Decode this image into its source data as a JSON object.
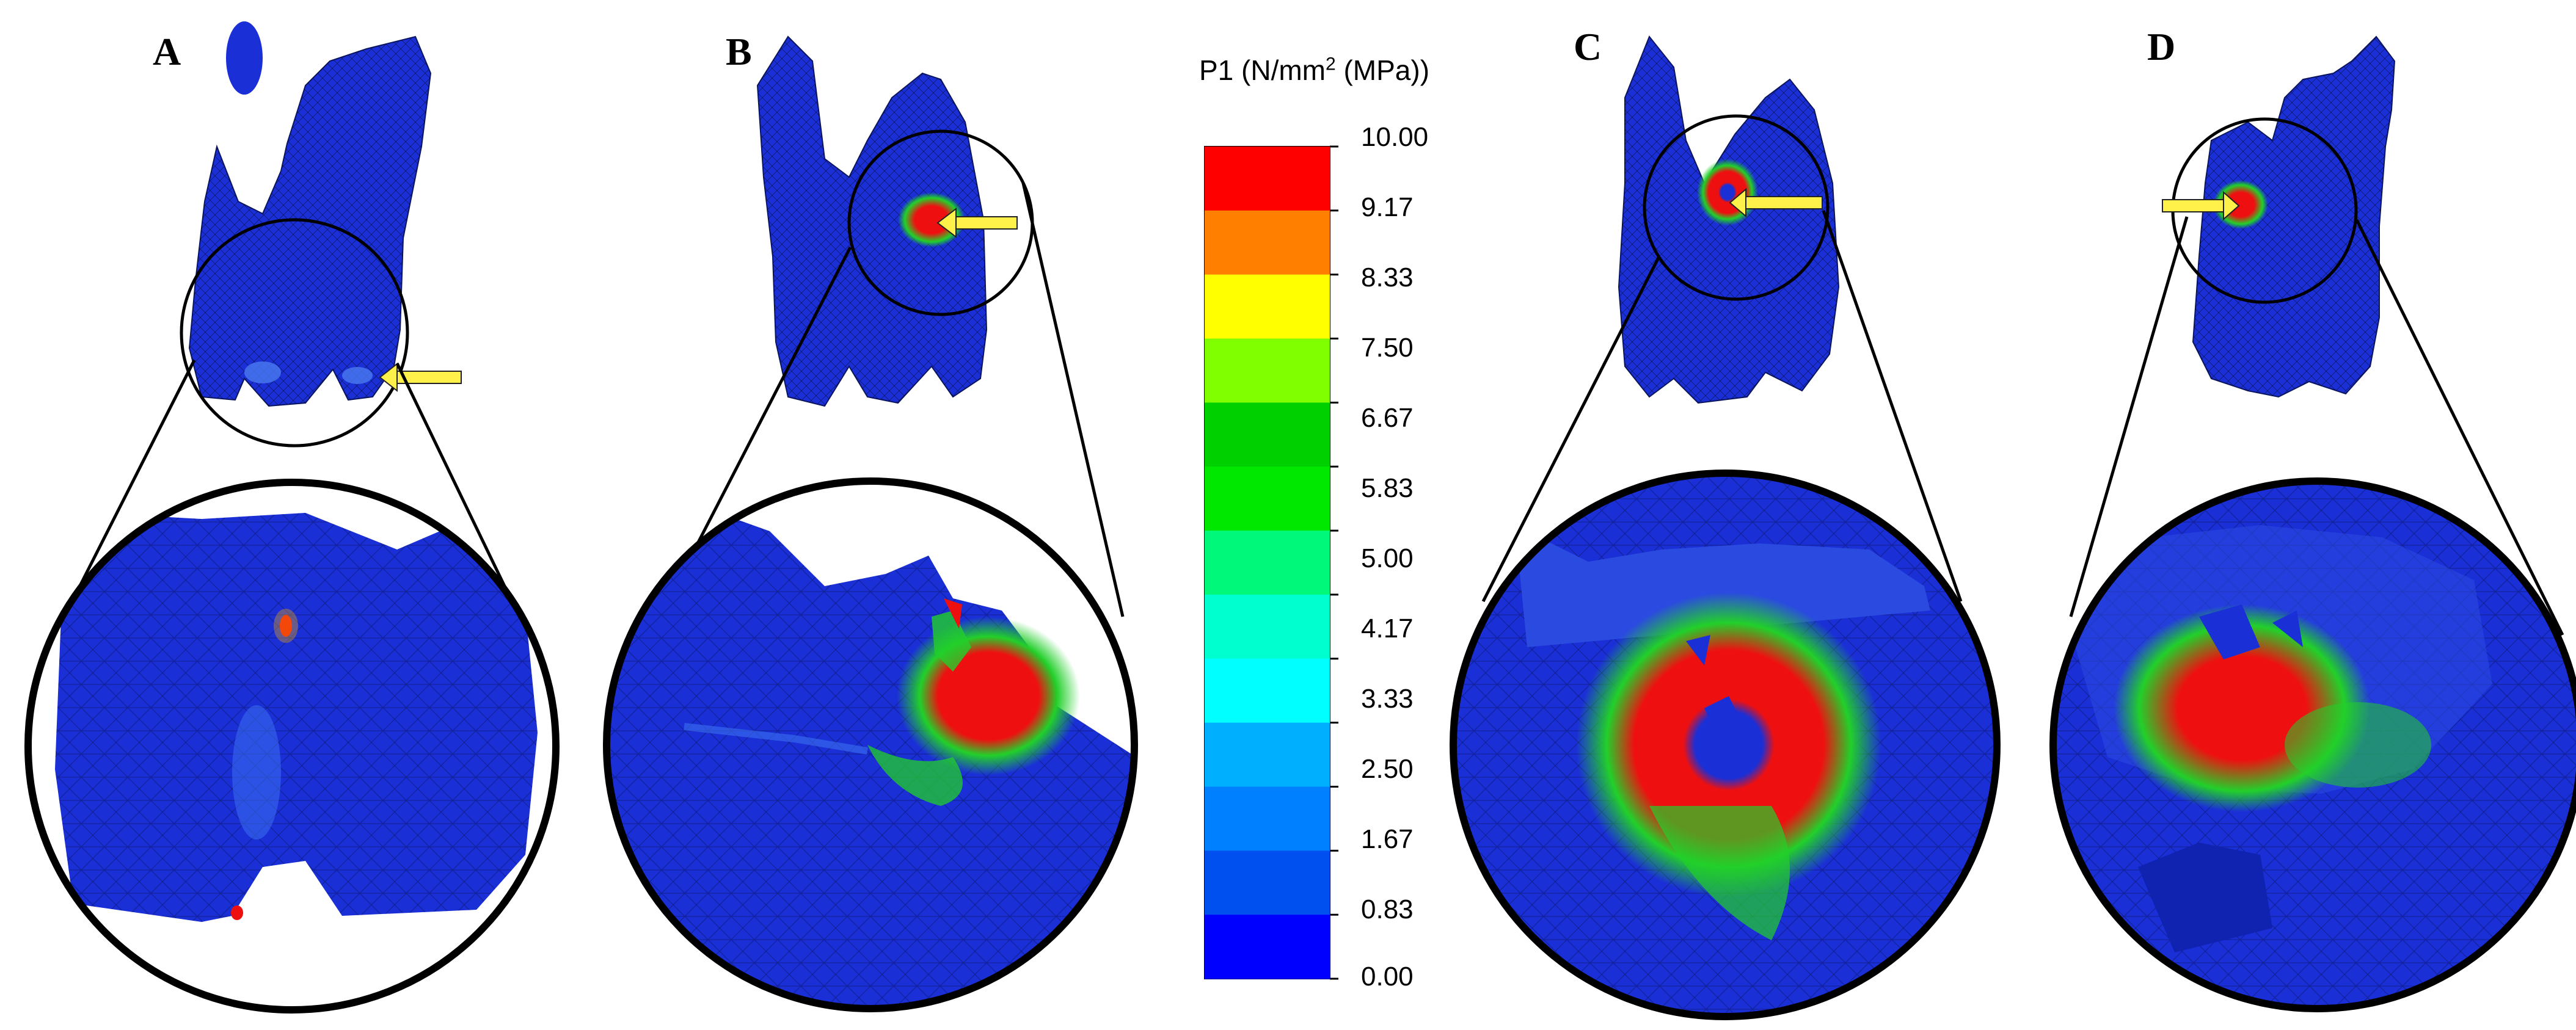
{
  "panels": [
    {
      "label": "A",
      "stress_region": "cusp-tips",
      "arrow_direction": "left"
    },
    {
      "label": "B",
      "stress_region": "upper-right",
      "arrow_direction": "left"
    },
    {
      "label": "C",
      "stress_region": "center",
      "arrow_direction": "left"
    },
    {
      "label": "D",
      "stress_region": "center-left",
      "arrow_direction": "right"
    }
  ],
  "legend": {
    "title_main": "P1 (N/mm",
    "title_sup": "2",
    "title_end": " (MPa))",
    "ticks": [
      "10.00",
      "9.17",
      "8.33",
      "7.50",
      "6.67",
      "5.83",
      "5.00",
      "4.17",
      "3.33",
      "2.50",
      "1.67",
      "0.83",
      "0.00"
    ],
    "colors": [
      "#fe0000",
      "#ff7f00",
      "#ffff00",
      "#7fff00",
      "#00d000",
      "#00e800",
      "#00f87a",
      "#00ffcf",
      "#00ffff",
      "#00b0ff",
      "#0080ff",
      "#0050f0",
      "#0000ff"
    ]
  },
  "colors": {
    "mesh_blue": "#1a2fd6",
    "mesh_line": "#0b1560",
    "stress_red": "#ee1010",
    "stress_green": "#22d02a",
    "arrow_fill": "#fff04a",
    "outline": "#000000"
  }
}
